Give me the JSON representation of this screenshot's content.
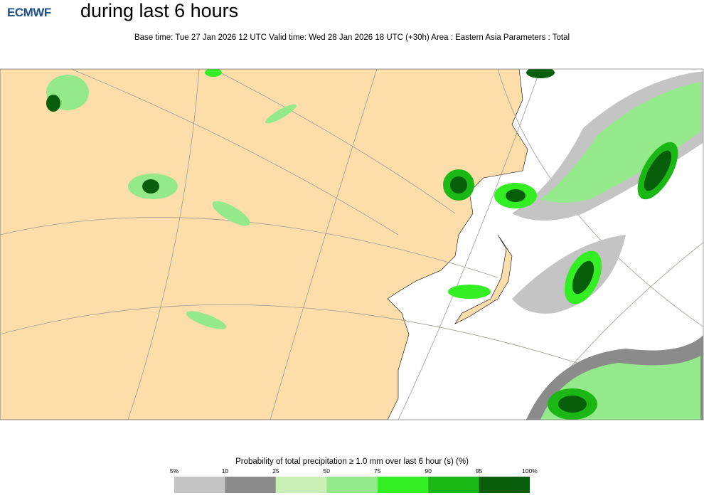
{
  "header": {
    "logo": "ECMWF",
    "title": "during last 6 hours",
    "subtitle": "Base time: Tue 27 Jan 2026 12 UTC Valid time: Wed 28 Jan 2026 18 UTC (+30h) Area : Eastern Asia Parameters : Total"
  },
  "legend": {
    "title": "Probability of total precipitation ≥ 1.0 mm over last 6 hour (s) (%)",
    "labels": [
      "5%",
      "10",
      "25",
      "50",
      "75",
      "90",
      "95",
      "100%"
    ],
    "colors": [
      "#c4c4c4",
      "#8b8b8b",
      "#c9efb5",
      "#94e98a",
      "#33ee22",
      "#1bb714",
      "#085e0a"
    ]
  }
}
